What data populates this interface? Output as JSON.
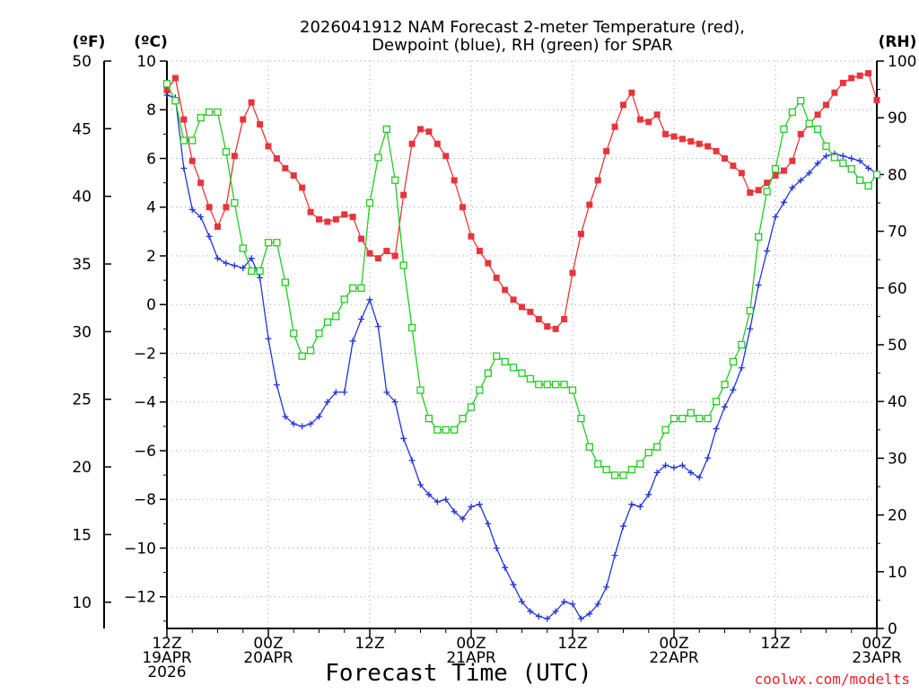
{
  "chart_data": {
    "type": "line",
    "title_line1": "2026041912 NAM Forecast 2-meter Temperature (red),",
    "title_line2": "Dewpoint (blue), RH (green) for SPAR",
    "xlabel": "Forecast Time (UTC)",
    "credit": "coolwx.com/modelts",
    "units": {
      "fahrenheit": "(ºF)",
      "celsius": "(ºC)",
      "rh": "(RH)"
    },
    "x_range_hours": [
      0,
      84
    ],
    "x_step_hours": 1,
    "x_ticks": [
      {
        "hour": 0,
        "lines": [
          "12Z",
          "19APR",
          "2026"
        ]
      },
      {
        "hour": 12,
        "lines": [
          "00Z",
          "20APR"
        ]
      },
      {
        "hour": 24,
        "lines": [
          "12Z"
        ]
      },
      {
        "hour": 36,
        "lines": [
          "00Z",
          "21APR"
        ]
      },
      {
        "hour": 48,
        "lines": [
          "12Z"
        ]
      },
      {
        "hour": 60,
        "lines": [
          "00Z",
          "22APR"
        ]
      },
      {
        "hour": 72,
        "lines": [
          "12Z"
        ]
      },
      {
        "hour": 84,
        "lines": [
          "00Z",
          "23APR"
        ]
      }
    ],
    "y_celsius": {
      "range": [
        -13.3,
        10.0
      ],
      "ticks": [
        10,
        8,
        6,
        4,
        2,
        0,
        -2,
        -4,
        -6,
        -8,
        -10,
        -12
      ]
    },
    "y_fahrenheit": {
      "ticks": [
        50,
        45,
        40,
        35,
        30,
        25,
        20,
        15,
        10
      ]
    },
    "y_rh": {
      "range": [
        0,
        100
      ],
      "ticks": [
        100,
        90,
        80,
        70,
        60,
        50,
        40,
        30,
        20,
        10,
        0
      ]
    },
    "series": [
      {
        "name": "Temperature",
        "unit": "celsius",
        "color": "#e8343a",
        "marker": "filled-square",
        "values": [
          8.8,
          9.3,
          7.6,
          5.9,
          5.0,
          4.0,
          3.2,
          4.0,
          6.1,
          7.6,
          8.3,
          7.4,
          6.5,
          6.0,
          5.6,
          5.3,
          4.8,
          3.8,
          3.5,
          3.4,
          3.5,
          3.7,
          3.6,
          2.7,
          2.1,
          1.9,
          2.2,
          2.0,
          4.5,
          6.6,
          7.2,
          7.1,
          6.6,
          6.1,
          5.1,
          4.0,
          2.8,
          2.2,
          1.7,
          1.1,
          0.6,
          0.2,
          -0.1,
          -0.3,
          -0.6,
          -0.9,
          -1.0,
          -0.6,
          1.3,
          2.9,
          4.1,
          5.1,
          6.3,
          7.3,
          8.2,
          8.7,
          7.6,
          7.5,
          7.8,
          7.0,
          6.9,
          6.8,
          6.7,
          6.6,
          6.5,
          6.3,
          6.0,
          5.7,
          5.4,
          4.6,
          4.7,
          5.0,
          5.3,
          5.5,
          5.9,
          7.0,
          7.4,
          7.8,
          8.2,
          8.7,
          9.1,
          9.3,
          9.4,
          9.5,
          8.4
        ]
      },
      {
        "name": "Dewpoint",
        "unit": "celsius",
        "color": "#2233dd",
        "marker": "plus",
        "values": [
          8.6,
          8.5,
          5.6,
          3.9,
          3.6,
          2.8,
          1.9,
          1.7,
          1.6,
          1.5,
          1.9,
          1.1,
          -1.4,
          -3.3,
          -4.6,
          -4.9,
          -5.0,
          -4.9,
          -4.6,
          -4.0,
          -3.6,
          -3.6,
          -1.5,
          -0.6,
          0.2,
          -0.9,
          -3.6,
          -4.0,
          -5.5,
          -6.4,
          -7.4,
          -7.8,
          -8.1,
          -8.0,
          -8.5,
          -8.8,
          -8.3,
          -8.2,
          -9.0,
          -10.0,
          -10.8,
          -11.5,
          -12.2,
          -12.6,
          -12.8,
          -12.9,
          -12.6,
          -12.2,
          -12.3,
          -12.9,
          -12.7,
          -12.3,
          -11.6,
          -10.3,
          -9.1,
          -8.2,
          -8.3,
          -7.8,
          -6.9,
          -6.6,
          -6.7,
          -6.6,
          -6.9,
          -7.1,
          -6.3,
          -5.1,
          -4.2,
          -3.5,
          -2.6,
          -1.0,
          0.8,
          2.2,
          3.6,
          4.2,
          4.8,
          5.1,
          5.4,
          5.8,
          6.1,
          6.2,
          6.1,
          6.0,
          5.9,
          5.6,
          5.4
        ]
      },
      {
        "name": "RH",
        "unit": "rh",
        "color": "#22cc22",
        "marker": "open-square",
        "values": [
          96,
          93,
          86,
          86,
          90,
          91,
          91,
          84,
          75,
          67,
          63,
          63,
          68,
          68,
          61,
          52,
          48,
          49,
          52,
          54,
          55,
          58,
          60,
          60,
          75,
          83,
          88,
          79,
          64,
          53,
          42,
          37,
          35,
          35,
          35,
          37,
          39,
          42,
          45,
          48,
          47,
          46,
          45,
          44,
          43,
          43,
          43,
          43,
          42,
          37,
          32,
          29,
          28,
          27,
          27,
          28,
          29,
          31,
          32,
          35,
          37,
          37,
          38,
          37,
          37,
          40,
          43,
          47,
          50,
          56,
          69,
          77,
          81,
          88,
          91,
          93,
          89,
          88,
          85,
          83,
          82,
          81,
          79,
          78,
          80
        ]
      }
    ],
    "grid": true,
    "legend": "none"
  }
}
